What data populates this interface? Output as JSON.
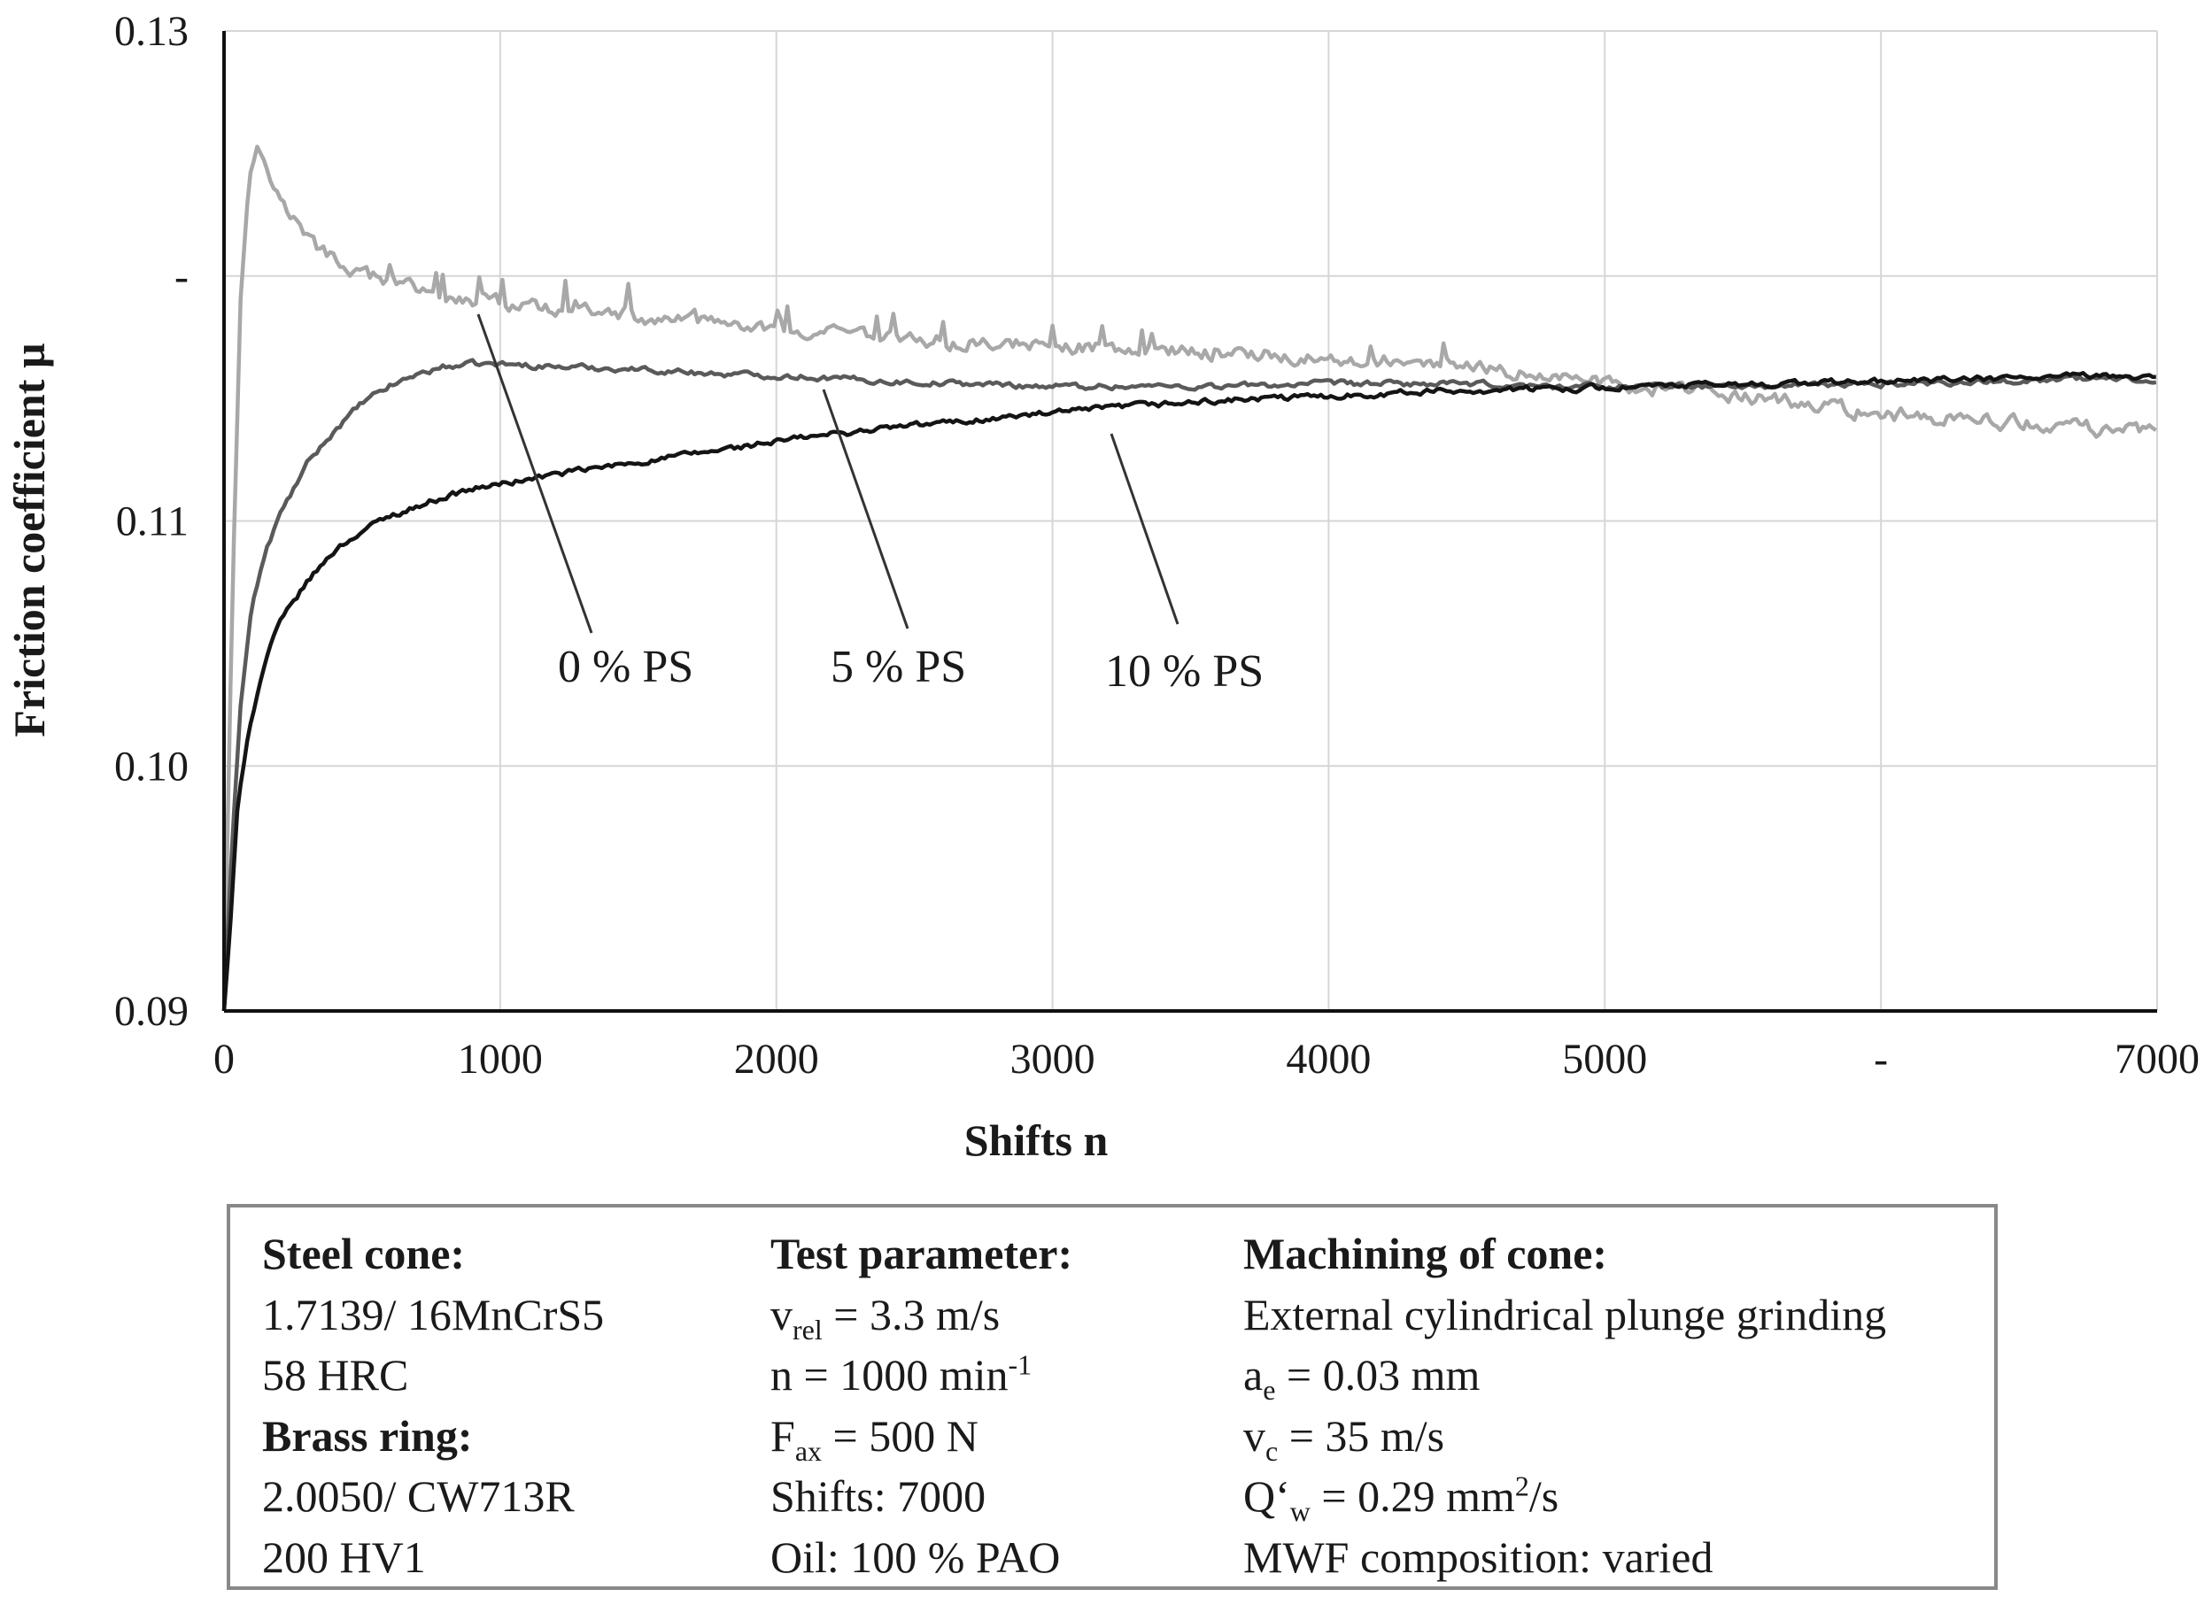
{
  "chart_data": {
    "type": "line",
    "title": "",
    "xlabel": "Shifts n",
    "ylabel": "Friction coefficient µ",
    "xlim": [
      0,
      7000
    ],
    "ylim": [
      0.09,
      0.13
    ],
    "x_tick_labels": [
      "0",
      "1000",
      "2000",
      "3000",
      "4000",
      "5000",
      "-",
      "7000"
    ],
    "y_tick_labels": [
      "0.13",
      "-",
      "0.11",
      "0.10",
      "0.09"
    ],
    "grid": true,
    "series": [
      {
        "name": "0 % PS",
        "color": "#a8a8a8",
        "noise": 0.00055,
        "x": [
          0,
          30,
          60,
          90,
          120,
          160,
          200,
          260,
          330,
          420,
          520,
          650,
          800,
          950,
          1100,
          1300,
          1500,
          1700,
          1900,
          2100,
          2300,
          2500,
          2700,
          2900,
          3100,
          3300,
          3500,
          3700,
          3900,
          4100,
          4300,
          4500,
          4700,
          4900,
          5100,
          5300,
          5500,
          5700,
          5900,
          6100,
          6300,
          6500,
          6700,
          6900,
          7000
        ],
        "y": [
          0.09,
          0.107,
          0.119,
          0.124,
          0.1253,
          0.1245,
          0.1232,
          0.1222,
          0.1212,
          0.1205,
          0.12,
          0.1196,
          0.1192,
          0.119,
          0.1188,
          0.1185,
          0.1183,
          0.1181,
          0.1179,
          0.1177,
          0.1175,
          0.1174,
          0.1173,
          0.1172,
          0.1171,
          0.117,
          0.1169,
          0.1168,
          0.1167,
          0.1166,
          0.1164,
          0.1162,
          0.116,
          0.1158,
          0.1155,
          0.1153,
          0.1151,
          0.1148,
          0.1145,
          0.1143,
          0.1141,
          0.114,
          0.1138,
          0.1137,
          0.1137
        ]
      },
      {
        "name": "5 % PS",
        "color": "#5a5a5a",
        "noise": 0.00022,
        "x": [
          0,
          30,
          60,
          100,
          150,
          200,
          300,
          400,
          500,
          600,
          700,
          800,
          900,
          1000,
          1200,
          1500,
          1800,
          2100,
          2400,
          2700,
          3000,
          3300,
          3600,
          4000,
          4400,
          4800,
          5200,
          5600,
          6000,
          6400,
          6700,
          6900,
          7000
        ],
        "y": [
          0.09,
          0.097,
          0.1025,
          0.1065,
          0.1087,
          0.1102,
          0.1123,
          0.1137,
          0.1148,
          0.1155,
          0.116,
          0.1163,
          0.1164,
          0.1164,
          0.1163,
          0.1162,
          0.116,
          0.1159,
          0.1157,
          0.1156,
          0.1155,
          0.1155,
          0.1155,
          0.1156,
          0.1156,
          0.1155,
          0.1155,
          0.1155,
          0.1156,
          0.1157,
          0.1158,
          0.1158,
          0.1158
        ]
      },
      {
        "name": "10 % PS",
        "color": "#141414",
        "noise": 0.00022,
        "x": [
          0,
          20,
          50,
          90,
          150,
          200,
          300,
          400,
          500,
          600,
          700,
          800,
          900,
          1000,
          1200,
          1500,
          1800,
          2100,
          2400,
          2700,
          3000,
          3300,
          3600,
          4000,
          4400,
          4800,
          5200,
          5600,
          6000,
          6400,
          6700,
          6900,
          7000
        ],
        "y": [
          0.09,
          0.093,
          0.0985,
          0.1015,
          0.1043,
          0.1058,
          0.1075,
          0.1088,
          0.1096,
          0.1102,
          0.1106,
          0.111,
          0.1113,
          0.1115,
          0.1119,
          0.1124,
          0.1129,
          0.1134,
          0.1138,
          0.1141,
          0.1144,
          0.1147,
          0.1149,
          0.1151,
          0.1153,
          0.1154,
          0.1155,
          0.1156,
          0.1157,
          0.1158,
          0.1159,
          0.1159,
          0.1159
        ]
      }
    ]
  },
  "info_box": {
    "steel_cone": {
      "heading": "Steel cone:",
      "material": "1.7139/ 16MnCrS5",
      "hardness": "58 HRC"
    },
    "brass_ring": {
      "heading": "Brass ring:",
      "material": "2.0050/ CW713R",
      "hardness": "200 HV1"
    },
    "test_parameter": {
      "heading": "Test parameter:",
      "vrel_symbol": "v",
      "vrel_sub": "rel",
      "vrel_value": " = 3.3 m/s",
      "n_value": "n = 1000 min",
      "n_sup": "-1",
      "fax_symbol": "F",
      "fax_sub": "ax",
      "fax_value": " = 500 N",
      "shifts": "Shifts: 7000",
      "oil": "Oil: 100 % PAO"
    },
    "machining": {
      "heading": "Machining of cone:",
      "process": "External cylindrical plunge grinding",
      "ae_symbol": "a",
      "ae_sub": "e",
      "ae_value": " = 0.03 mm",
      "vc_symbol": "v",
      "vc_sub": "c",
      "vc_value": " = 35 m/s",
      "qw_symbol": "Q‘",
      "qw_sub": "w",
      "qw_value": " = 0.29 mm",
      "qw_sup": "2",
      "qw_unit_tail": "/s",
      "mwf": "MWF composition: varied"
    }
  }
}
